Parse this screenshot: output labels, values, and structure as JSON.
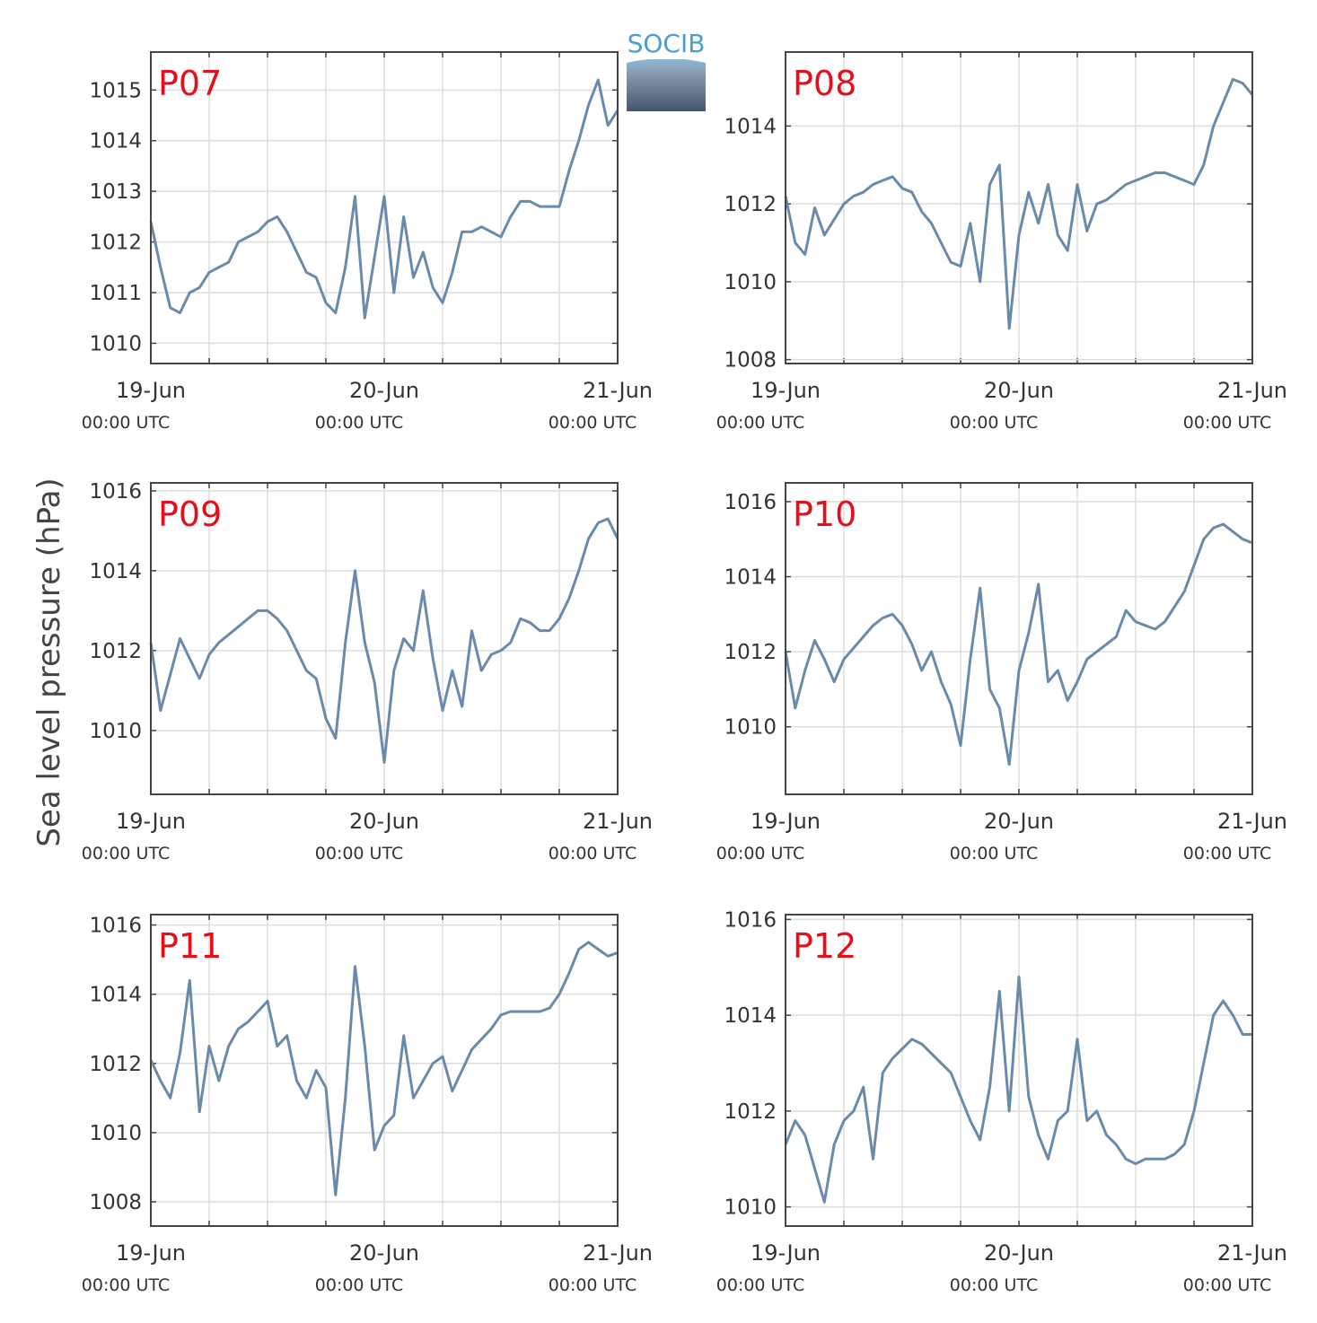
{
  "logo": "SOCIB",
  "ylabel": "Sea level pressure (hPa)",
  "chart_data": [
    {
      "type": "line",
      "title": "P07",
      "color": "#6a8aab",
      "x": [
        "19-Jun 00:00",
        "19-Jun 01:00",
        "19-Jun 02:00",
        "19-Jun 03:00",
        "19-Jun 04:00",
        "19-Jun 05:00",
        "19-Jun 06:00",
        "19-Jun 07:00",
        "19-Jun 08:00",
        "19-Jun 09:00",
        "19-Jun 10:00",
        "19-Jun 11:00",
        "19-Jun 12:00",
        "19-Jun 13:00",
        "19-Jun 14:00",
        "19-Jun 15:00",
        "19-Jun 16:00",
        "19-Jun 17:00",
        "19-Jun 18:00",
        "19-Jun 19:00",
        "19-Jun 20:00",
        "19-Jun 21:00",
        "19-Jun 22:00",
        "19-Jun 23:00",
        "20-Jun 00:00",
        "20-Jun 01:00",
        "20-Jun 02:00",
        "20-Jun 03:00",
        "20-Jun 04:00",
        "20-Jun 05:00",
        "20-Jun 06:00",
        "20-Jun 07:00",
        "20-Jun 08:00",
        "20-Jun 09:00",
        "20-Jun 10:00",
        "20-Jun 11:00",
        "20-Jun 12:00",
        "20-Jun 13:00",
        "20-Jun 14:00",
        "20-Jun 15:00",
        "20-Jun 16:00",
        "20-Jun 17:00",
        "20-Jun 18:00",
        "20-Jun 19:00",
        "20-Jun 20:00",
        "20-Jun 21:00",
        "20-Jun 22:00",
        "20-Jun 23:00",
        "21-Jun 00:00"
      ],
      "values": [
        1012.4,
        1011.5,
        1010.7,
        1010.6,
        1011.0,
        1011.1,
        1011.4,
        1011.5,
        1011.6,
        1012.0,
        1012.1,
        1012.2,
        1012.4,
        1012.5,
        1012.2,
        1011.8,
        1011.4,
        1011.3,
        1010.8,
        1010.6,
        1011.5,
        1012.9,
        1010.5,
        1011.7,
        1012.9,
        1011.0,
        1012.5,
        1011.3,
        1011.8,
        1011.1,
        1010.8,
        1011.4,
        1012.2,
        1012.2,
        1012.3,
        1012.2,
        1012.1,
        1012.5,
        1012.8,
        1012.8,
        1012.7,
        1012.7,
        1012.7,
        1013.4,
        1014.0,
        1014.7,
        1015.2,
        1014.3,
        1014.6
      ],
      "xlim": [
        "19-Jun 00:00",
        "21-Jun 00:00"
      ],
      "xticks": [
        {
          "value": "19-Jun 00:00",
          "label": [
            "19-Jun",
            "00:00 UTC"
          ]
        },
        {
          "value": "19-Jun 06:00",
          "label": null
        },
        {
          "value": "19-Jun 12:00",
          "label": null
        },
        {
          "value": "19-Jun 18:00",
          "label": null
        },
        {
          "value": "20-Jun 00:00",
          "label": [
            "20-Jun",
            "00:00 UTC"
          ]
        },
        {
          "value": "20-Jun 06:00",
          "label": null
        },
        {
          "value": "20-Jun 12:00",
          "label": null
        },
        {
          "value": "20-Jun 18:00",
          "label": null
        },
        {
          "value": "21-Jun 00:00",
          "label": [
            "21-Jun",
            "00:00 UTC"
          ]
        }
      ],
      "ylim": [
        1009.6,
        1015.75
      ],
      "yticks": [
        1010,
        1011,
        1012,
        1013,
        1014,
        1015
      ],
      "grid": true
    },
    {
      "type": "line",
      "title": "P08",
      "color": "#6a8aab",
      "x": [
        "19-Jun 00:00",
        "19-Jun 01:00",
        "19-Jun 02:00",
        "19-Jun 03:00",
        "19-Jun 04:00",
        "19-Jun 05:00",
        "19-Jun 06:00",
        "19-Jun 07:00",
        "19-Jun 08:00",
        "19-Jun 09:00",
        "19-Jun 10:00",
        "19-Jun 11:00",
        "19-Jun 12:00",
        "19-Jun 13:00",
        "19-Jun 14:00",
        "19-Jun 15:00",
        "19-Jun 16:00",
        "19-Jun 17:00",
        "19-Jun 18:00",
        "19-Jun 19:00",
        "19-Jun 20:00",
        "19-Jun 21:00",
        "19-Jun 22:00",
        "19-Jun 23:00",
        "20-Jun 00:00",
        "20-Jun 01:00",
        "20-Jun 02:00",
        "20-Jun 03:00",
        "20-Jun 04:00",
        "20-Jun 05:00",
        "20-Jun 06:00",
        "20-Jun 07:00",
        "20-Jun 08:00",
        "20-Jun 09:00",
        "20-Jun 10:00",
        "20-Jun 11:00",
        "20-Jun 12:00",
        "20-Jun 13:00",
        "20-Jun 14:00",
        "20-Jun 15:00",
        "20-Jun 16:00",
        "20-Jun 17:00",
        "20-Jun 18:00",
        "20-Jun 19:00",
        "20-Jun 20:00",
        "20-Jun 21:00",
        "20-Jun 22:00",
        "20-Jun 23:00",
        "21-Jun 00:00"
      ],
      "values": [
        1012.2,
        1011.0,
        1010.7,
        1011.9,
        1011.2,
        1011.6,
        1012.0,
        1012.2,
        1012.3,
        1012.5,
        1012.6,
        1012.7,
        1012.4,
        1012.3,
        1011.8,
        1011.5,
        1011.0,
        1010.5,
        1010.4,
        1011.5,
        1010.0,
        1012.5,
        1013.0,
        1008.8,
        1011.2,
        1012.3,
        1011.5,
        1012.5,
        1011.2,
        1010.8,
        1012.5,
        1011.3,
        1012.0,
        1012.1,
        1012.3,
        1012.5,
        1012.6,
        1012.7,
        1012.8,
        1012.8,
        1012.7,
        1012.6,
        1012.5,
        1013.0,
        1014.0,
        1014.6,
        1015.2,
        1015.1,
        1014.8
      ],
      "xlim": [
        "19-Jun 00:00",
        "21-Jun 00:00"
      ],
      "xticks": [
        {
          "value": "19-Jun 00:00",
          "label": [
            "19-Jun",
            "00:00 UTC"
          ]
        },
        {
          "value": "19-Jun 06:00",
          "label": null
        },
        {
          "value": "19-Jun 12:00",
          "label": null
        },
        {
          "value": "19-Jun 18:00",
          "label": null
        },
        {
          "value": "20-Jun 00:00",
          "label": [
            "20-Jun",
            "00:00 UTC"
          ]
        },
        {
          "value": "20-Jun 06:00",
          "label": null
        },
        {
          "value": "20-Jun 12:00",
          "label": null
        },
        {
          "value": "20-Jun 18:00",
          "label": null
        },
        {
          "value": "21-Jun 00:00",
          "label": [
            "21-Jun",
            "00:00 UTC"
          ]
        }
      ],
      "ylim": [
        1007.9,
        1015.9
      ],
      "yticks": [
        1008,
        1010,
        1012,
        1014
      ],
      "grid": true
    },
    {
      "type": "line",
      "title": "P09",
      "color": "#6a8aab",
      "x": [
        "19-Jun 00:00",
        "19-Jun 01:00",
        "19-Jun 02:00",
        "19-Jun 03:00",
        "19-Jun 04:00",
        "19-Jun 05:00",
        "19-Jun 06:00",
        "19-Jun 07:00",
        "19-Jun 08:00",
        "19-Jun 09:00",
        "19-Jun 10:00",
        "19-Jun 11:00",
        "19-Jun 12:00",
        "19-Jun 13:00",
        "19-Jun 14:00",
        "19-Jun 15:00",
        "19-Jun 16:00",
        "19-Jun 17:00",
        "19-Jun 18:00",
        "19-Jun 19:00",
        "19-Jun 20:00",
        "19-Jun 21:00",
        "19-Jun 22:00",
        "19-Jun 23:00",
        "20-Jun 00:00",
        "20-Jun 01:00",
        "20-Jun 02:00",
        "20-Jun 03:00",
        "20-Jun 04:00",
        "20-Jun 05:00",
        "20-Jun 06:00",
        "20-Jun 07:00",
        "20-Jun 08:00",
        "20-Jun 09:00",
        "20-Jun 10:00",
        "20-Jun 11:00",
        "20-Jun 12:00",
        "20-Jun 13:00",
        "20-Jun 14:00",
        "20-Jun 15:00",
        "20-Jun 16:00",
        "20-Jun 17:00",
        "20-Jun 18:00",
        "20-Jun 19:00",
        "20-Jun 20:00",
        "20-Jun 21:00",
        "20-Jun 22:00",
        "20-Jun 23:00",
        "21-Jun 00:00"
      ],
      "values": [
        1012.2,
        1010.5,
        1011.4,
        1012.3,
        1011.8,
        1011.3,
        1011.9,
        1012.2,
        1012.4,
        1012.6,
        1012.8,
        1013.0,
        1013.0,
        1012.8,
        1012.5,
        1012.0,
        1011.5,
        1011.3,
        1010.3,
        1009.8,
        1012.2,
        1014.0,
        1012.2,
        1011.2,
        1009.2,
        1011.5,
        1012.3,
        1012.0,
        1013.5,
        1011.8,
        1010.5,
        1011.5,
        1010.6,
        1012.5,
        1011.5,
        1011.9,
        1012.0,
        1012.2,
        1012.8,
        1012.7,
        1012.5,
        1012.5,
        1012.8,
        1013.3,
        1014.0,
        1014.8,
        1015.2,
        1015.3,
        1014.8
      ],
      "xlim": [
        "19-Jun 00:00",
        "21-Jun 00:00"
      ],
      "xticks": [
        {
          "value": "19-Jun 00:00",
          "label": [
            "19-Jun",
            "00:00 UTC"
          ]
        },
        {
          "value": "19-Jun 06:00",
          "label": null
        },
        {
          "value": "19-Jun 12:00",
          "label": null
        },
        {
          "value": "19-Jun 18:00",
          "label": null
        },
        {
          "value": "20-Jun 00:00",
          "label": [
            "20-Jun",
            "00:00 UTC"
          ]
        },
        {
          "value": "20-Jun 06:00",
          "label": null
        },
        {
          "value": "20-Jun 12:00",
          "label": null
        },
        {
          "value": "20-Jun 18:00",
          "label": null
        },
        {
          "value": "21-Jun 00:00",
          "label": [
            "21-Jun",
            "00:00 UTC"
          ]
        }
      ],
      "ylim": [
        1008.4,
        1016.2
      ],
      "yticks": [
        1010,
        1012,
        1014,
        1016
      ],
      "grid": true
    },
    {
      "type": "line",
      "title": "P10",
      "color": "#6a8aab",
      "x": [
        "19-Jun 00:00",
        "19-Jun 01:00",
        "19-Jun 02:00",
        "19-Jun 03:00",
        "19-Jun 04:00",
        "19-Jun 05:00",
        "19-Jun 06:00",
        "19-Jun 07:00",
        "19-Jun 08:00",
        "19-Jun 09:00",
        "19-Jun 10:00",
        "19-Jun 11:00",
        "19-Jun 12:00",
        "19-Jun 13:00",
        "19-Jun 14:00",
        "19-Jun 15:00",
        "19-Jun 16:00",
        "19-Jun 17:00",
        "19-Jun 18:00",
        "19-Jun 19:00",
        "19-Jun 20:00",
        "19-Jun 21:00",
        "19-Jun 22:00",
        "19-Jun 23:00",
        "20-Jun 00:00",
        "20-Jun 01:00",
        "20-Jun 02:00",
        "20-Jun 03:00",
        "20-Jun 04:00",
        "20-Jun 05:00",
        "20-Jun 06:00",
        "20-Jun 07:00",
        "20-Jun 08:00",
        "20-Jun 09:00",
        "20-Jun 10:00",
        "20-Jun 11:00",
        "20-Jun 12:00",
        "20-Jun 13:00",
        "20-Jun 14:00",
        "20-Jun 15:00",
        "20-Jun 16:00",
        "20-Jun 17:00",
        "20-Jun 18:00",
        "20-Jun 19:00",
        "20-Jun 20:00",
        "20-Jun 21:00",
        "20-Jun 22:00",
        "20-Jun 23:00",
        "21-Jun 00:00"
      ],
      "values": [
        1012.0,
        1010.5,
        1011.5,
        1012.3,
        1011.8,
        1011.2,
        1011.8,
        1012.1,
        1012.4,
        1012.7,
        1012.9,
        1013.0,
        1012.7,
        1012.2,
        1011.5,
        1012.0,
        1011.2,
        1010.6,
        1009.5,
        1011.8,
        1013.7,
        1011.0,
        1010.5,
        1009.0,
        1011.5,
        1012.5,
        1013.8,
        1011.2,
        1011.5,
        1010.7,
        1011.2,
        1011.8,
        1012.0,
        1012.2,
        1012.4,
        1013.1,
        1012.8,
        1012.7,
        1012.6,
        1012.8,
        1013.2,
        1013.6,
        1014.3,
        1015.0,
        1015.3,
        1015.4,
        1015.2,
        1015.0,
        1014.9
      ],
      "xlim": [
        "19-Jun 00:00",
        "21-Jun 00:00"
      ],
      "xticks": [
        {
          "value": "19-Jun 00:00",
          "label": [
            "19-Jun",
            "00:00 UTC"
          ]
        },
        {
          "value": "19-Jun 06:00",
          "label": null
        },
        {
          "value": "19-Jun 12:00",
          "label": null
        },
        {
          "value": "19-Jun 18:00",
          "label": null
        },
        {
          "value": "20-Jun 00:00",
          "label": [
            "20-Jun",
            "00:00 UTC"
          ]
        },
        {
          "value": "20-Jun 06:00",
          "label": null
        },
        {
          "value": "20-Jun 12:00",
          "label": null
        },
        {
          "value": "20-Jun 18:00",
          "label": null
        },
        {
          "value": "21-Jun 00:00",
          "label": [
            "21-Jun",
            "00:00 UTC"
          ]
        }
      ],
      "ylim": [
        1008.2,
        1016.5
      ],
      "yticks": [
        1010,
        1012,
        1014,
        1016
      ],
      "grid": true
    },
    {
      "type": "line",
      "title": "P11",
      "color": "#6a8aab",
      "x": [
        "19-Jun 00:00",
        "19-Jun 01:00",
        "19-Jun 02:00",
        "19-Jun 03:00",
        "19-Jun 04:00",
        "19-Jun 05:00",
        "19-Jun 06:00",
        "19-Jun 07:00",
        "19-Jun 08:00",
        "19-Jun 09:00",
        "19-Jun 10:00",
        "19-Jun 11:00",
        "19-Jun 12:00",
        "19-Jun 13:00",
        "19-Jun 14:00",
        "19-Jun 15:00",
        "19-Jun 16:00",
        "19-Jun 17:00",
        "19-Jun 18:00",
        "19-Jun 19:00",
        "19-Jun 20:00",
        "19-Jun 21:00",
        "19-Jun 22:00",
        "19-Jun 23:00",
        "20-Jun 00:00",
        "20-Jun 01:00",
        "20-Jun 02:00",
        "20-Jun 03:00",
        "20-Jun 04:00",
        "20-Jun 05:00",
        "20-Jun 06:00",
        "20-Jun 07:00",
        "20-Jun 08:00",
        "20-Jun 09:00",
        "20-Jun 10:00",
        "20-Jun 11:00",
        "20-Jun 12:00",
        "20-Jun 13:00",
        "20-Jun 14:00",
        "20-Jun 15:00",
        "20-Jun 16:00",
        "20-Jun 17:00",
        "20-Jun 18:00",
        "20-Jun 19:00",
        "20-Jun 20:00",
        "20-Jun 21:00",
        "20-Jun 22:00",
        "20-Jun 23:00",
        "21-Jun 00:00"
      ],
      "values": [
        1012.1,
        1011.5,
        1011.0,
        1012.3,
        1014.4,
        1010.6,
        1012.5,
        1011.5,
        1012.5,
        1013.0,
        1013.2,
        1013.5,
        1013.8,
        1012.5,
        1012.8,
        1011.5,
        1011.0,
        1011.8,
        1011.3,
        1008.2,
        1011.0,
        1014.8,
        1012.5,
        1009.5,
        1010.2,
        1010.5,
        1012.8,
        1011.0,
        1011.5,
        1012.0,
        1012.2,
        1011.2,
        1011.8,
        1012.4,
        1012.7,
        1013.0,
        1013.4,
        1013.5,
        1013.5,
        1013.5,
        1013.5,
        1013.6,
        1014.0,
        1014.6,
        1015.3,
        1015.5,
        1015.3,
        1015.1,
        1015.2
      ],
      "xlim": [
        "19-Jun 00:00",
        "21-Jun 00:00"
      ],
      "xticks": [
        {
          "value": "19-Jun 00:00",
          "label": [
            "19-Jun",
            "00:00 UTC"
          ]
        },
        {
          "value": "19-Jun 06:00",
          "label": null
        },
        {
          "value": "19-Jun 12:00",
          "label": null
        },
        {
          "value": "19-Jun 18:00",
          "label": null
        },
        {
          "value": "20-Jun 00:00",
          "label": [
            "20-Jun",
            "00:00 UTC"
          ]
        },
        {
          "value": "20-Jun 06:00",
          "label": null
        },
        {
          "value": "20-Jun 12:00",
          "label": null
        },
        {
          "value": "20-Jun 18:00",
          "label": null
        },
        {
          "value": "21-Jun 00:00",
          "label": [
            "21-Jun",
            "00:00 UTC"
          ]
        }
      ],
      "ylim": [
        1007.3,
        1016.3
      ],
      "yticks": [
        1008,
        1010,
        1012,
        1014,
        1016
      ],
      "grid": true
    },
    {
      "type": "line",
      "title": "P12",
      "color": "#6a8aab",
      "x": [
        "19-Jun 00:00",
        "19-Jun 01:00",
        "19-Jun 02:00",
        "19-Jun 03:00",
        "19-Jun 04:00",
        "19-Jun 05:00",
        "19-Jun 06:00",
        "19-Jun 07:00",
        "19-Jun 08:00",
        "19-Jun 09:00",
        "19-Jun 10:00",
        "19-Jun 11:00",
        "19-Jun 12:00",
        "19-Jun 13:00",
        "19-Jun 14:00",
        "19-Jun 15:00",
        "19-Jun 16:00",
        "19-Jun 17:00",
        "19-Jun 18:00",
        "19-Jun 19:00",
        "19-Jun 20:00",
        "19-Jun 21:00",
        "19-Jun 22:00",
        "19-Jun 23:00",
        "20-Jun 00:00",
        "20-Jun 01:00",
        "20-Jun 02:00",
        "20-Jun 03:00",
        "20-Jun 04:00",
        "20-Jun 05:00",
        "20-Jun 06:00",
        "20-Jun 07:00",
        "20-Jun 08:00",
        "20-Jun 09:00",
        "20-Jun 10:00",
        "20-Jun 11:00",
        "20-Jun 12:00",
        "20-Jun 13:00",
        "20-Jun 14:00",
        "20-Jun 15:00",
        "20-Jun 16:00",
        "20-Jun 17:00",
        "20-Jun 18:00",
        "20-Jun 19:00",
        "20-Jun 20:00",
        "20-Jun 21:00",
        "20-Jun 22:00",
        "20-Jun 23:00",
        "21-Jun 00:00"
      ],
      "values": [
        1011.3,
        1011.8,
        1011.5,
        1010.8,
        1010.1,
        1011.3,
        1011.8,
        1012.0,
        1012.5,
        1011.0,
        1012.8,
        1013.1,
        1013.3,
        1013.5,
        1013.4,
        1013.2,
        1013.0,
        1012.8,
        1012.3,
        1011.8,
        1011.4,
        1012.5,
        1014.5,
        1012.0,
        1014.8,
        1012.3,
        1011.5,
        1011.0,
        1011.8,
        1012.0,
        1013.5,
        1011.8,
        1012.0,
        1011.5,
        1011.3,
        1011.0,
        1010.9,
        1011.0,
        1011.0,
        1011.0,
        1011.1,
        1011.3,
        1012.0,
        1013.0,
        1014.0,
        1014.3,
        1014.0,
        1013.6,
        1013.6
      ],
      "xlim": [
        "19-Jun 00:00",
        "21-Jun 00:00"
      ],
      "xticks": [
        {
          "value": "19-Jun 00:00",
          "label": [
            "19-Jun",
            "00:00 UTC"
          ]
        },
        {
          "value": "19-Jun 06:00",
          "label": null
        },
        {
          "value": "19-Jun 12:00",
          "label": null
        },
        {
          "value": "19-Jun 18:00",
          "label": null
        },
        {
          "value": "20-Jun 00:00",
          "label": [
            "20-Jun",
            "00:00 UTC"
          ]
        },
        {
          "value": "20-Jun 06:00",
          "label": null
        },
        {
          "value": "20-Jun 12:00",
          "label": null
        },
        {
          "value": "20-Jun 18:00",
          "label": null
        },
        {
          "value": "21-Jun 00:00",
          "label": [
            "21-Jun",
            "00:00 UTC"
          ]
        }
      ],
      "ylim": [
        1009.6,
        1016.1
      ],
      "yticks": [
        1010,
        1012,
        1014,
        1016
      ],
      "grid": true
    }
  ]
}
